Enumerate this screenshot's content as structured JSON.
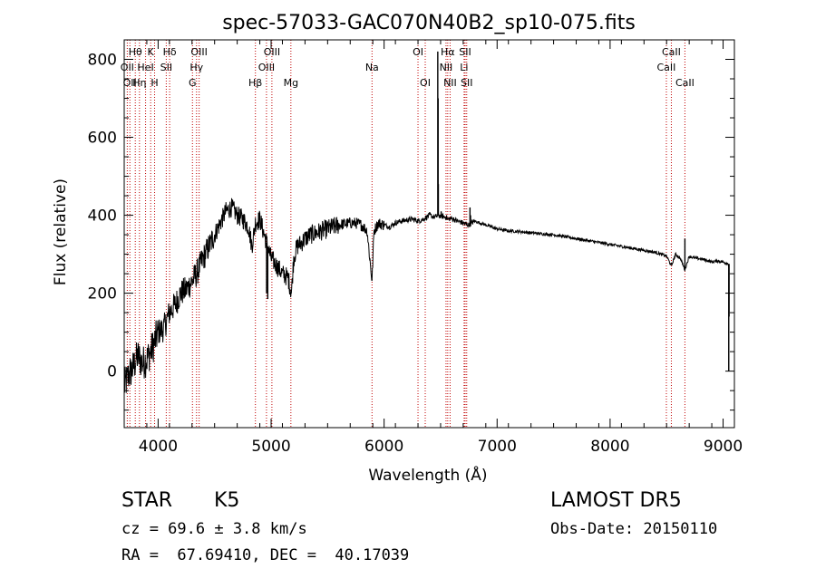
{
  "chart_data": {
    "type": "line",
    "title": "spec-57033-GAC070N40B2_sp10-075.fits",
    "xlabel": "Wavelength (Å)",
    "ylabel": "Flux (relative)",
    "xlim": [
      3700,
      9100
    ],
    "ylim": [
      -145,
      850
    ],
    "x_ticks": [
      4000,
      5000,
      6000,
      7000,
      8000,
      9000
    ],
    "y_ticks": [
      0,
      200,
      400,
      600,
      800
    ],
    "grid": false,
    "line_color": "#000000",
    "marker_color": "#c00000",
    "spectrum": {
      "name": "",
      "x": [
        3700,
        3740,
        3780,
        3820,
        3860,
        3900,
        3950,
        4000,
        4050,
        4100,
        4150,
        4200,
        4250,
        4300,
        4340,
        4400,
        4450,
        4500,
        4550,
        4600,
        4650,
        4700,
        4750,
        4800,
        4830,
        4861,
        4900,
        4950,
        5000,
        5050,
        5100,
        5150,
        5180,
        5200,
        5230,
        5270,
        5300,
        5350,
        5400,
        5450,
        5500,
        5550,
        5600,
        5650,
        5700,
        5750,
        5800,
        5850,
        5893,
        5910,
        5950,
        6000,
        6050,
        6100,
        6150,
        6200,
        6250,
        6300,
        6350,
        6400,
        6450,
        6480,
        6500,
        6550,
        6563,
        6600,
        6650,
        6700,
        6750,
        6800,
        6900,
        7000,
        7100,
        7200,
        7300,
        7400,
        7500,
        7600,
        7700,
        7800,
        7900,
        8000,
        8100,
        8200,
        8300,
        8400,
        8500,
        8542,
        8580,
        8620,
        8662,
        8700,
        8750,
        8800,
        8850,
        8900,
        8950,
        9000,
        9050
      ],
      "y": [
        -40,
        -10,
        10,
        40,
        20,
        30,
        60,
        100,
        110,
        150,
        170,
        200,
        210,
        230,
        250,
        290,
        320,
        350,
        380,
        410,
        420,
        400,
        390,
        370,
        320,
        380,
        390,
        340,
        290,
        270,
        250,
        240,
        200,
        290,
        320,
        330,
        340,
        350,
        355,
        360,
        365,
        370,
        375,
        378,
        380,
        380,
        375,
        360,
        230,
        360,
        380,
        375,
        370,
        380,
        385,
        388,
        390,
        385,
        390,
        400,
        395,
        400,
        398,
        395,
        390,
        392,
        385,
        380,
        375,
        385,
        375,
        365,
        360,
        358,
        355,
        352,
        350,
        345,
        340,
        335,
        330,
        325,
        320,
        315,
        310,
        305,
        295,
        270,
        300,
        290,
        260,
        295,
        290,
        288,
        285,
        280,
        283,
        280,
        275
      ]
    },
    "features": [
      {
        "x": 4960,
        "y": 200
      },
      {
        "x": 4970,
        "y": 185
      },
      {
        "x": 6475,
        "y": 820
      },
      {
        "x": 6478,
        "y": 700
      },
      {
        "x": 6480,
        "y": 480
      },
      {
        "x": 6505,
        "y": 410
      },
      {
        "x": 6760,
        "y": 420
      },
      {
        "x": 6765,
        "y": 400
      },
      {
        "x": 8662,
        "y": 340
      },
      {
        "x": 9050,
        "y": 0
      },
      {
        "x": 9053,
        "y": 140
      }
    ],
    "lines": [
      {
        "x": 3727,
        "label": "OII",
        "row": 1
      },
      {
        "x": 3750,
        "label": "OII",
        "row": 2
      },
      {
        "x": 3798,
        "label": "Hθ",
        "row": 0
      },
      {
        "x": 3835,
        "label": "Hη",
        "row": 2
      },
      {
        "x": 3889,
        "label": "HeI",
        "row": 1
      },
      {
        "x": 3934,
        "label": "K",
        "row": 0
      },
      {
        "x": 3969,
        "label": "H",
        "row": 2
      },
      {
        "x": 4072,
        "label": "SII",
        "row": 1
      },
      {
        "x": 4102,
        "label": "Hδ",
        "row": 0
      },
      {
        "x": 4304,
        "label": "G",
        "row": 2
      },
      {
        "x": 4340,
        "label": "Hγ",
        "row": 1
      },
      {
        "x": 4363,
        "label": "OIII",
        "row": 0
      },
      {
        "x": 4861,
        "label": "Hβ",
        "row": 2
      },
      {
        "x": 4959,
        "label": "OIII",
        "row": 1
      },
      {
        "x": 5007,
        "label": "OIII",
        "row": 0
      },
      {
        "x": 5175,
        "label": "Mg",
        "row": 2
      },
      {
        "x": 5893,
        "label": "Na",
        "row": 1
      },
      {
        "x": 6300,
        "label": "OI",
        "row": 0
      },
      {
        "x": 6364,
        "label": "OI",
        "row": 2
      },
      {
        "x": 6548,
        "label": "NII",
        "row": 1
      },
      {
        "x": 6563,
        "label": "Hα",
        "row": 0
      },
      {
        "x": 6584,
        "label": "NII",
        "row": 2
      },
      {
        "x": 6708,
        "label": "Li",
        "row": 1
      },
      {
        "x": 6717,
        "label": "SII",
        "row": 0
      },
      {
        "x": 6731,
        "label": "SII",
        "row": 2
      },
      {
        "x": 8498,
        "label": "CaII",
        "row": 1
      },
      {
        "x": 8542,
        "label": "CaII",
        "row": 0
      },
      {
        "x": 8662,
        "label": "CaII",
        "row": 2
      }
    ]
  },
  "info": {
    "object_class": "STAR",
    "subclass": "K5",
    "redshift": "cz = 69.6 ± 3.8 km/s",
    "coordinates": "RA =  67.69410, DEC =  40.17039",
    "survey": "LAMOST DR5",
    "obs_date": "Obs-Date: 20150110"
  }
}
